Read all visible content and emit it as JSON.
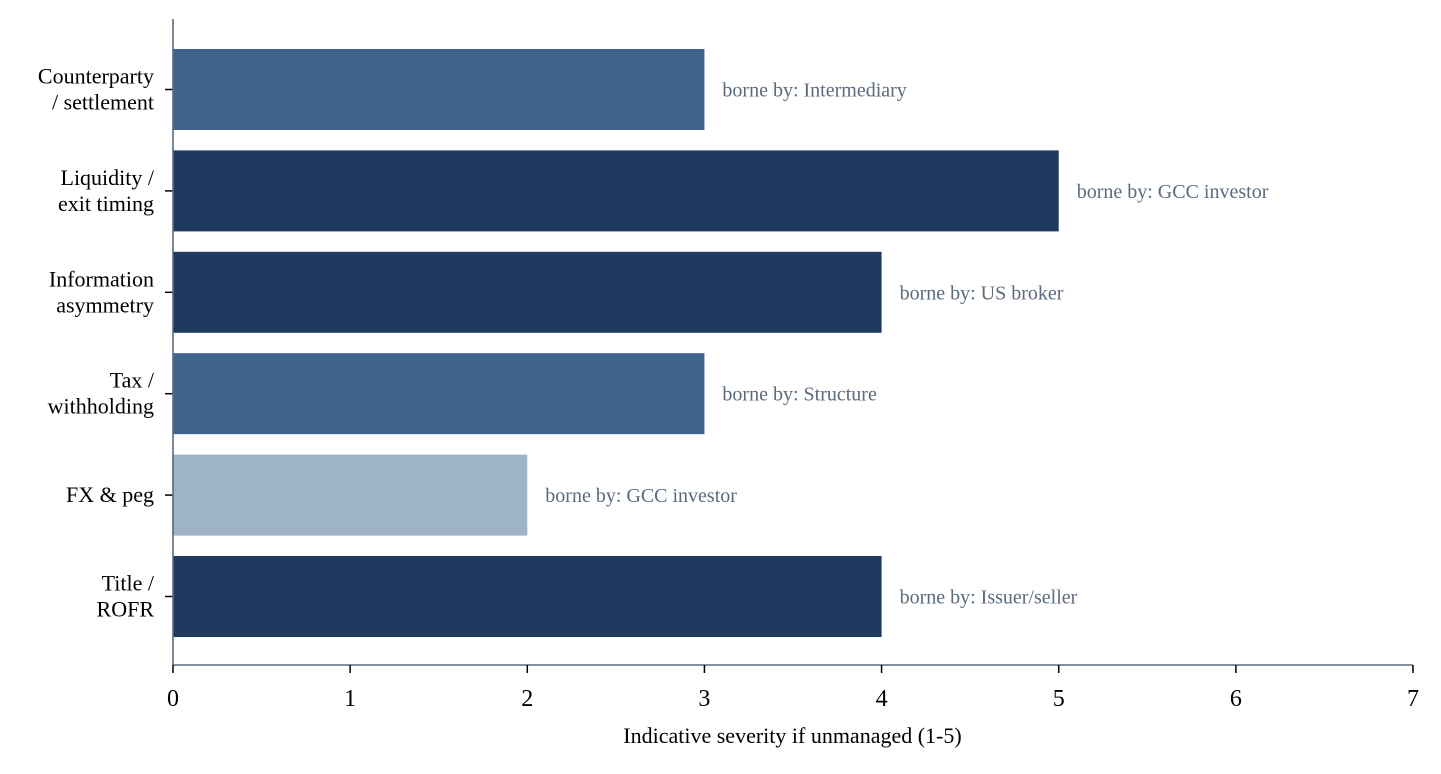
{
  "chart_data": {
    "type": "bar",
    "orientation": "horizontal",
    "categories": [
      [
        "Counterparty",
        "/ settlement"
      ],
      [
        "Liquidity /",
        "exit timing"
      ],
      [
        "Information",
        "asymmetry"
      ],
      [
        "Tax /",
        "withholding"
      ],
      [
        "FX & peg"
      ],
      [
        "Title /",
        "ROFR"
      ]
    ],
    "values": [
      3,
      5,
      4,
      3,
      2,
      4
    ],
    "bar_colors": [
      "#3f658e",
      "#1f3a5f",
      "#1f3a5f",
      "#3f658e",
      "#9fb3c8",
      "#1f3a5f"
    ],
    "annotations": [
      "borne by: Intermediary",
      "borne by: GCC investor",
      "borne by: US broker",
      "borne by: Structure",
      "borne by: GCC investor",
      "borne by: Issuer/seller"
    ],
    "xlabel": "Indicative severity if unmanaged (1-5)",
    "ylabel": "",
    "title": "",
    "xlim": [
      0,
      7
    ],
    "xticks": [
      "0",
      "1",
      "2",
      "3",
      "4",
      "5",
      "6",
      "7"
    ],
    "grid": false,
    "legend": "none",
    "axis_color": "#5a6b7e",
    "annotation_color": "#5a6b7e"
  }
}
